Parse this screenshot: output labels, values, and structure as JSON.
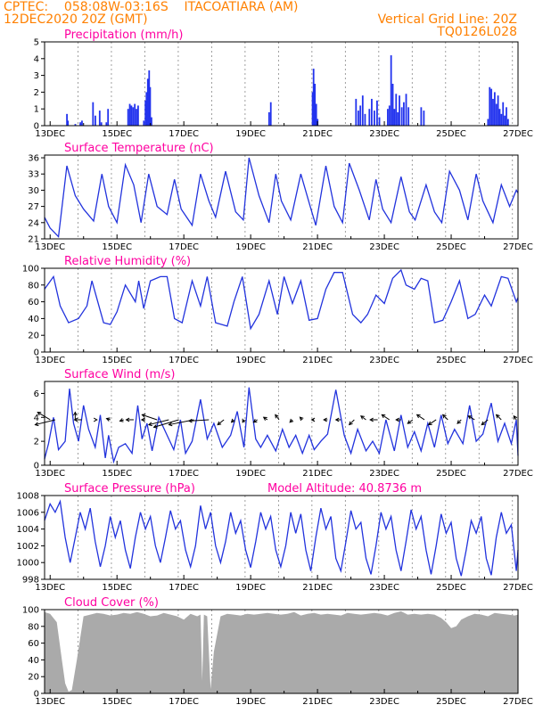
{
  "header": {
    "line1_left": "CPTEC:    058:08W-03:16S    ITACOATIARA (AM)",
    "line2_left": "12DEC2020 20Z (GMT)",
    "line1_right": "Vertical Grid Line: 20Z",
    "line2_right": "TQ0126L028"
  },
  "colors": {
    "header": "#ff8000",
    "title": "#ff00a0",
    "series": "#2233dd",
    "bars": "#2233ee",
    "cloud": "#aaaaaa",
    "grid": "#888888"
  },
  "x_axis": {
    "range_days": [
      12.8333,
      27.0
    ],
    "tick_days": [
      13,
      15,
      17,
      19,
      21,
      23,
      25,
      27
    ],
    "tick_labels": [
      "13DEC",
      "15DEC",
      "17DEC",
      "19DEC",
      "21DEC",
      "23DEC",
      "25DEC",
      "27DEC"
    ],
    "minor_tick_days": [
      14,
      16,
      18,
      20,
      22,
      24,
      26
    ],
    "gridline_days": [
      13.8333,
      14.8333,
      15.8333,
      16.8333,
      17.8333,
      18.8333,
      19.8333,
      20.8333,
      21.8333,
      22.8333,
      23.8333,
      24.8333,
      25.8333,
      26.8333
    ]
  },
  "chart_data": [
    {
      "id": "precip",
      "type": "bar",
      "title": "Precipitation (mm/h)",
      "ylim": [
        0,
        5
      ],
      "yticks": [
        0,
        1,
        2,
        3,
        4,
        5
      ],
      "x": [
        13.5,
        13.53,
        13.75,
        13.9,
        13.95,
        14.28,
        14.35,
        14.48,
        14.53,
        14.68,
        14.73,
        15.33,
        15.38,
        15.43,
        15.48,
        15.53,
        15.58,
        15.63,
        15.8,
        15.85,
        15.88,
        15.92,
        15.96,
        15.99,
        16.03,
        19.55,
        19.6,
        20.85,
        20.88,
        20.92,
        20.96,
        21.0,
        22.15,
        22.22,
        22.28,
        22.35,
        22.42,
        22.55,
        22.62,
        22.7,
        22.78,
        22.85,
        23.1,
        23.15,
        23.2,
        23.25,
        23.3,
        23.35,
        23.4,
        23.45,
        23.52,
        23.58,
        23.65,
        23.72,
        24.1,
        24.18,
        26.1,
        26.15,
        26.2,
        26.25,
        26.3,
        26.35,
        26.4,
        26.45,
        26.5,
        26.55,
        26.6,
        26.65,
        26.7
      ],
      "values": [
        0.7,
        0.3,
        0.1,
        0.2,
        0.3,
        1.4,
        0.6,
        0.9,
        0.2,
        0.2,
        1.0,
        1.0,
        1.3,
        1.2,
        1.1,
        1.3,
        1.0,
        1.2,
        0.3,
        1.5,
        2.0,
        2.8,
        3.3,
        2.3,
        0.5,
        0.8,
        1.4,
        2.0,
        3.4,
        2.5,
        1.3,
        0.4,
        1.6,
        0.9,
        1.2,
        1.8,
        0.7,
        1.0,
        1.6,
        0.9,
        1.5,
        0.5,
        1.0,
        1.2,
        4.2,
        2.5,
        1.0,
        1.9,
        0.8,
        1.8,
        1.1,
        1.4,
        1.9,
        1.1,
        1.1,
        0.9,
        0.4,
        2.3,
        2.2,
        1.6,
        2.0,
        1.3,
        1.8,
        1.0,
        0.7,
        1.4,
        0.6,
        1.1,
        0.4
      ]
    },
    {
      "id": "temp",
      "type": "line",
      "title": "Surface Temperature (nC)",
      "ylim": [
        21,
        36.5
      ],
      "yticks": [
        21,
        24,
        27,
        30,
        33,
        36
      ],
      "x": [
        12.83,
        13.0,
        13.25,
        13.5,
        13.75,
        14.0,
        14.3,
        14.55,
        14.75,
        15.0,
        15.25,
        15.5,
        15.72,
        15.95,
        16.2,
        16.5,
        16.72,
        16.92,
        17.25,
        17.5,
        17.75,
        17.95,
        18.25,
        18.55,
        18.78,
        18.95,
        19.25,
        19.55,
        19.75,
        19.92,
        20.2,
        20.5,
        20.78,
        20.95,
        21.25,
        21.5,
        21.75,
        21.95,
        22.25,
        22.55,
        22.75,
        22.95,
        23.2,
        23.5,
        23.75,
        23.92,
        24.25,
        24.5,
        24.72,
        24.95,
        25.25,
        25.5,
        25.75,
        25.95,
        26.25,
        26.5,
        26.75,
        26.95,
        27.0
      ],
      "values": [
        25,
        23,
        21.4,
        34.5,
        29,
        26.5,
        24.3,
        33,
        27,
        24,
        34.7,
        31,
        24,
        33,
        27,
        25.5,
        32,
        26.5,
        23.5,
        33,
        28,
        25,
        33.5,
        26,
        24.5,
        36,
        29,
        24,
        33,
        28,
        24.5,
        33,
        27,
        23.5,
        34.5,
        27,
        24,
        35,
        30,
        24.5,
        32,
        26.5,
        24,
        32.5,
        26,
        24.5,
        31,
        26,
        24,
        33.5,
        30,
        24.5,
        33,
        28,
        24,
        31,
        27,
        30,
        29.5
      ]
    },
    {
      "id": "rh",
      "type": "line",
      "title": "Relative Humidity (%)",
      "ylim": [
        0,
        100
      ],
      "yticks": [
        0,
        20,
        40,
        60,
        80,
        100
      ],
      "x": [
        12.83,
        13.1,
        13.3,
        13.55,
        13.85,
        14.1,
        14.25,
        14.6,
        14.8,
        15.0,
        15.25,
        15.55,
        15.65,
        15.8,
        16.0,
        16.3,
        16.5,
        16.72,
        16.95,
        17.25,
        17.5,
        17.7,
        17.95,
        18.3,
        18.5,
        18.75,
        19.0,
        19.25,
        19.55,
        19.8,
        20.0,
        20.25,
        20.5,
        20.75,
        21.0,
        21.25,
        21.5,
        21.75,
        22.05,
        22.3,
        22.5,
        22.75,
        23.0,
        23.25,
        23.5,
        23.65,
        23.9,
        24.1,
        24.3,
        24.5,
        24.75,
        25.0,
        25.25,
        25.5,
        25.72,
        26.0,
        26.2,
        26.5,
        26.7,
        26.95,
        27.0
      ],
      "values": [
        75,
        90,
        55,
        35,
        40,
        55,
        85,
        35,
        33,
        48,
        80,
        60,
        85,
        52,
        85,
        90,
        90,
        40,
        35,
        85,
        55,
        90,
        35,
        31,
        60,
        90,
        28,
        45,
        85,
        45,
        90,
        58,
        85,
        38,
        40,
        75,
        95,
        95,
        45,
        35,
        45,
        68,
        58,
        88,
        98,
        80,
        75,
        88,
        85,
        35,
        38,
        60,
        85,
        40,
        45,
        68,
        55,
        90,
        88,
        60,
        65
      ]
    },
    {
      "id": "wind",
      "type": "line",
      "title": "Surface Wind (m/s)",
      "ylim": [
        0,
        7
      ],
      "yticks": [
        0,
        2,
        4,
        6
      ],
      "x": [
        12.83,
        12.95,
        13.1,
        13.25,
        13.45,
        13.58,
        13.7,
        13.85,
        14.0,
        14.15,
        14.35,
        14.5,
        14.65,
        14.75,
        14.9,
        15.05,
        15.25,
        15.45,
        15.62,
        15.75,
        15.9,
        16.05,
        16.25,
        16.5,
        16.7,
        16.9,
        17.05,
        17.25,
        17.5,
        17.7,
        17.9,
        18.15,
        18.4,
        18.6,
        18.8,
        18.95,
        19.15,
        19.3,
        19.5,
        19.75,
        19.95,
        20.15,
        20.35,
        20.55,
        20.75,
        20.9,
        21.1,
        21.3,
        21.55,
        21.8,
        22.0,
        22.2,
        22.45,
        22.65,
        22.85,
        23.05,
        23.3,
        23.5,
        23.7,
        23.9,
        24.1,
        24.3,
        24.5,
        24.7,
        24.9,
        25.1,
        25.35,
        25.55,
        25.75,
        25.95,
        26.2,
        26.4,
        26.6,
        26.8,
        26.95,
        27.0
      ],
      "values": [
        0.5,
        1.8,
        4.0,
        1.3,
        2.0,
        6.4,
        3.5,
        2.0,
        5.0,
        3.0,
        1.5,
        4.2,
        0.6,
        2.5,
        0.3,
        1.5,
        1.8,
        1.0,
        5.0,
        2.2,
        3.5,
        1.2,
        4.0,
        2.5,
        1.3,
        3.8,
        1.0,
        2.0,
        5.5,
        2.2,
        3.5,
        1.5,
        2.5,
        4.5,
        1.5,
        6.5,
        2.2,
        1.5,
        2.5,
        1.2,
        3.0,
        1.5,
        2.5,
        1.0,
        2.5,
        1.3,
        2.0,
        2.6,
        6.3,
        2.5,
        1.0,
        3.0,
        1.2,
        2.0,
        1.0,
        3.8,
        1.2,
        4.2,
        1.5,
        2.8,
        1.2,
        3.5,
        1.5,
        4.2,
        1.8,
        3.0,
        1.8,
        5.0,
        2.0,
        2.6,
        5.2,
        2.0,
        3.5,
        1.8,
        3.8,
        0.8
      ]
    },
    {
      "id": "pres",
      "type": "line",
      "title": "Surface Pressure (hPa)",
      "annotation": "Model Altitude: 40.8736 m",
      "ylim": [
        998,
        1008
      ],
      "yticks": [
        998,
        1000,
        1002,
        1004,
        1006,
        1008
      ],
      "x": [
        12.83,
        13.0,
        13.15,
        13.3,
        13.45,
        13.6,
        13.75,
        13.9,
        14.05,
        14.2,
        14.35,
        14.5,
        14.65,
        14.8,
        14.95,
        15.1,
        15.25,
        15.4,
        15.55,
        15.7,
        15.85,
        16.0,
        16.15,
        16.3,
        16.45,
        16.6,
        16.75,
        16.9,
        17.05,
        17.2,
        17.35,
        17.5,
        17.65,
        17.8,
        17.95,
        18.1,
        18.25,
        18.4,
        18.55,
        18.7,
        18.85,
        19.0,
        19.15,
        19.3,
        19.45,
        19.6,
        19.75,
        19.9,
        20.05,
        20.2,
        20.35,
        20.5,
        20.65,
        20.8,
        20.95,
        21.1,
        21.25,
        21.4,
        21.55,
        21.7,
        21.85,
        22.0,
        22.15,
        22.3,
        22.45,
        22.6,
        22.75,
        22.9,
        23.05,
        23.2,
        23.35,
        23.5,
        23.65,
        23.8,
        23.95,
        24.1,
        24.25,
        24.4,
        24.55,
        24.7,
        24.85,
        25.0,
        25.15,
        25.3,
        25.45,
        25.6,
        25.75,
        25.9,
        26.05,
        26.2,
        26.35,
        26.5,
        26.65,
        26.8,
        26.95,
        27.0
      ],
      "values": [
        1005,
        1007,
        1006,
        1007.3,
        1003,
        1000,
        1003,
        1006,
        1004,
        1006.5,
        1002.5,
        999.5,
        1002,
        1005.5,
        1003,
        1005,
        1001.5,
        999.3,
        1003,
        1006,
        1004,
        1005.5,
        1002,
        1000,
        1003,
        1006.2,
        1004,
        1005,
        1001.5,
        999.5,
        1002,
        1006.8,
        1004,
        1006,
        1002,
        1000,
        1002.5,
        1006,
        1003.5,
        1005,
        1001.5,
        999.4,
        1002.5,
        1006,
        1004,
        1005.5,
        1001.5,
        999.5,
        1002,
        1006,
        1003.5,
        1005.8,
        1001.5,
        999,
        1003,
        1006.5,
        1004,
        1005.5,
        1000.5,
        999,
        1002.5,
        1006.2,
        1004,
        1004.8,
        1000.5,
        998.6,
        1002,
        1006,
        1004,
        1005.5,
        1001.5,
        999,
        1002.5,
        1006.3,
        1004,
        1005.5,
        1001.5,
        998.6,
        1002,
        1005.8,
        1003.5,
        1004.8,
        1000.5,
        998.4,
        1001.5,
        1005,
        1003.5,
        1005.5,
        1000.5,
        998.5,
        1003,
        1006,
        1003.5,
        1004.5,
        999,
        1001.5
      ]
    },
    {
      "id": "cloud",
      "type": "area",
      "title": "Cloud Cover (%)",
      "ylim": [
        0,
        100
      ],
      "yticks": [
        0,
        20,
        40,
        60,
        80,
        100
      ],
      "x": [
        12.83,
        13.0,
        13.2,
        13.35,
        13.45,
        13.55,
        13.65,
        13.8,
        14.0,
        14.2,
        14.4,
        14.6,
        14.8,
        15.0,
        15.2,
        15.4,
        15.6,
        15.8,
        16.0,
        16.2,
        16.4,
        16.6,
        16.8,
        17.0,
        17.2,
        17.4,
        17.5,
        17.55,
        17.6,
        17.7,
        17.8,
        17.9,
        18.1,
        18.3,
        18.5,
        18.7,
        18.9,
        19.1,
        19.3,
        19.5,
        19.7,
        19.9,
        20.1,
        20.3,
        20.5,
        20.7,
        20.9,
        21.1,
        21.3,
        21.5,
        21.7,
        21.9,
        22.1,
        22.3,
        22.5,
        22.7,
        22.9,
        23.1,
        23.3,
        23.5,
        23.7,
        23.9,
        24.1,
        24.3,
        24.5,
        24.7,
        24.85,
        25.0,
        25.15,
        25.3,
        25.5,
        25.7,
        25.9,
        26.1,
        26.3,
        26.5,
        26.7,
        26.9,
        27.0
      ],
      "values": [
        97,
        95,
        85,
        40,
        12,
        2,
        4,
        40,
        92,
        94,
        96,
        95,
        93,
        94,
        96,
        95,
        97,
        95,
        92,
        93,
        96,
        94,
        92,
        88,
        95,
        92,
        94,
        15,
        94,
        92,
        5,
        50,
        92,
        95,
        94,
        93,
        95,
        94,
        95,
        96,
        95,
        94,
        95,
        97,
        93,
        95,
        96,
        94,
        95,
        94,
        93,
        96,
        95,
        94,
        95,
        96,
        95,
        93,
        96,
        98,
        94,
        95,
        94,
        95,
        94,
        90,
        85,
        78,
        80,
        88,
        92,
        95,
        94,
        92,
        96,
        95,
        94,
        93,
        94
      ]
    },
    {
      "id": "wind_vectors",
      "type": "scatter",
      "x": [
        13.0,
        13.15,
        13.75,
        13.95,
        14.4,
        14.8,
        15.2,
        15.5,
        15.85,
        16.2,
        16.55,
        16.85,
        17.3,
        17.75,
        18.2,
        18.5,
        18.8,
        19.2,
        19.5,
        19.85,
        20.25,
        20.55,
        20.9,
        21.3,
        21.7,
        22.1,
        22.45,
        22.8,
        23.15,
        23.5,
        23.85,
        24.2,
        24.55,
        24.9,
        25.3,
        25.7,
        26.1,
        26.5,
        26.95
      ],
      "u": [
        1.0,
        1.6,
        0.0,
        0.6,
        0.0,
        0.3,
        0.3,
        0.6,
        0.3,
        1.2,
        1.6,
        2.0,
        2.0,
        1.6,
        0.5,
        0.2,
        0.1,
        0.3,
        0.3,
        0.3,
        0.2,
        0.2,
        0.2,
        0.3,
        0.4,
        0.4,
        0.4,
        0.6,
        0.6,
        0.4,
        0.4,
        0.6,
        0.6,
        0.4,
        0.3,
        0.5,
        0.5,
        0.4,
        0.2
      ],
      "v": [
        -0.6,
        0.4,
        -0.6,
        0.0,
        0.0,
        -0.1,
        0.1,
        0.0,
        0.0,
        -0.4,
        0.4,
        0.6,
        0.4,
        0.1,
        0.4,
        0.2,
        0.2,
        0.2,
        -0.2,
        -0.4,
        0.2,
        -0.2,
        0.0,
        0.0,
        0.0,
        0.4,
        -0.3,
        0.0,
        -0.4,
        0.0,
        0.3,
        -0.4,
        0.4,
        -0.4,
        0.3,
        -0.3,
        0.4,
        -0.4,
        -0.3
      ]
    }
  ]
}
